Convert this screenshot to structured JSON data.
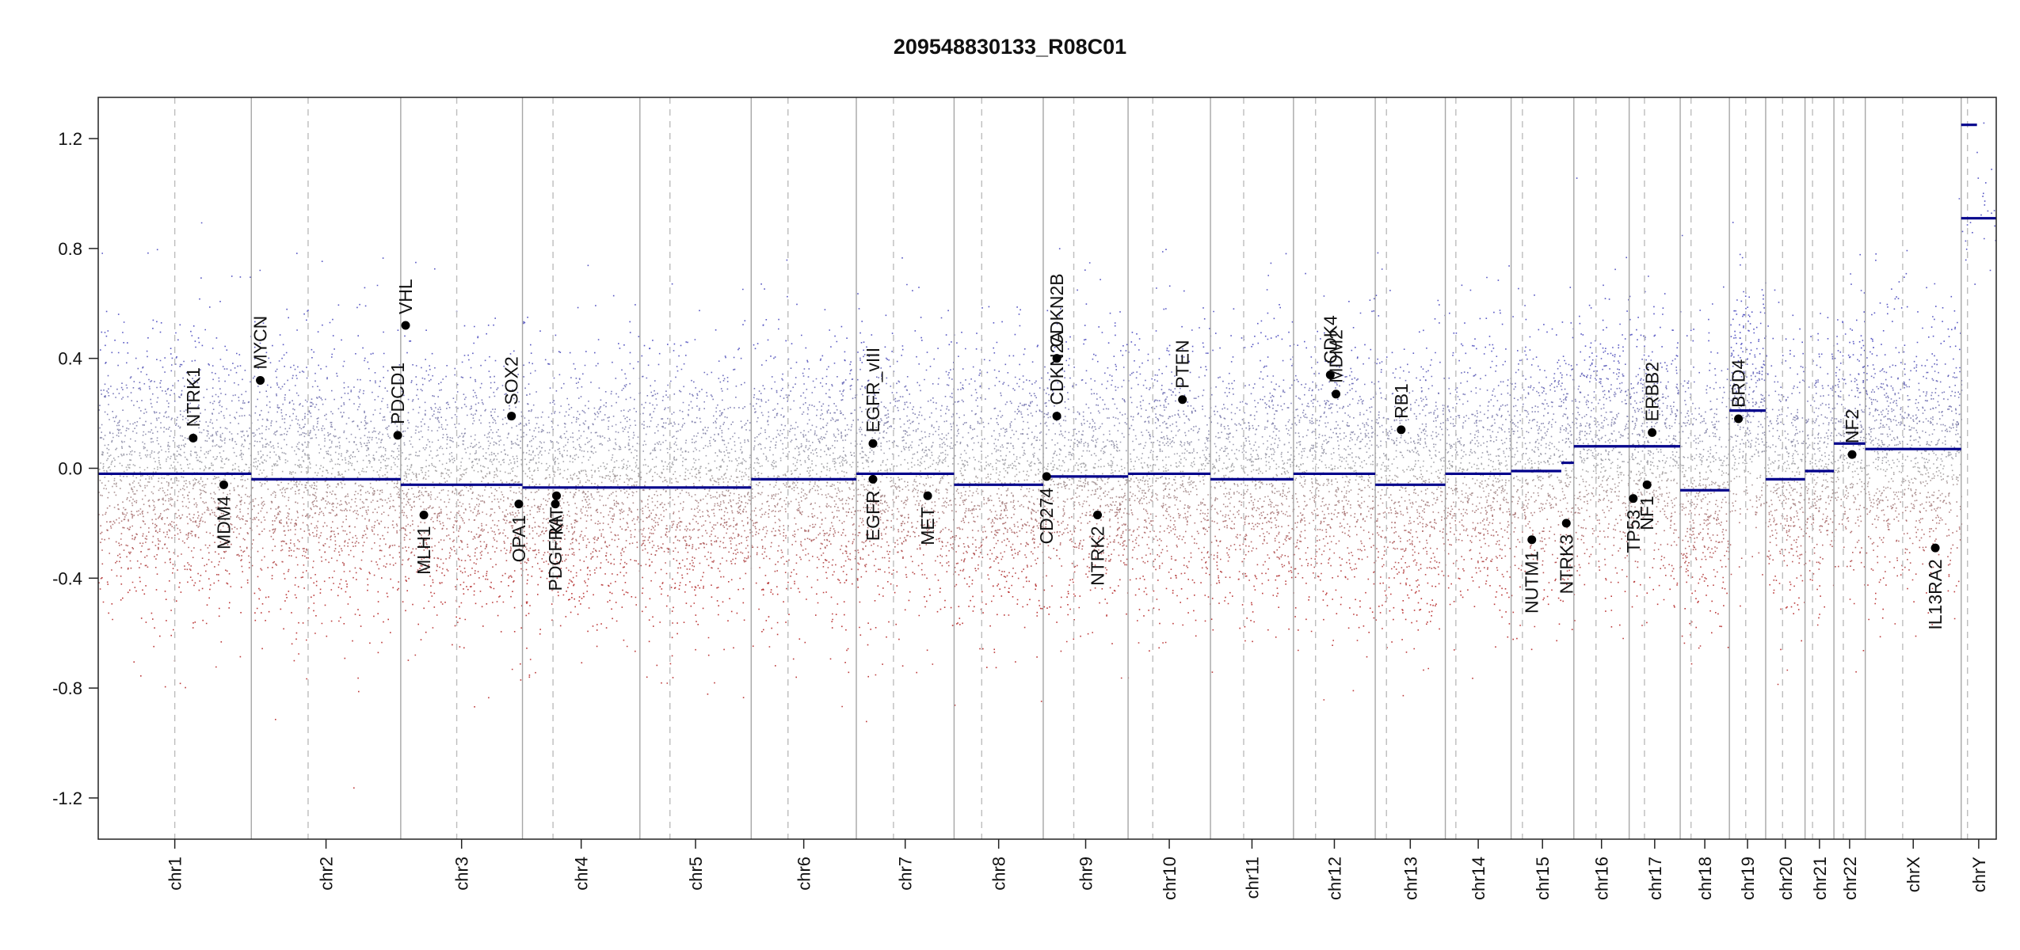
{
  "chart_data": {
    "type": "scatter",
    "title": "209548830133_R08C01",
    "xlabel": "",
    "ylabel": "",
    "ylim": [
      -1.35,
      1.35
    ],
    "yticks": [
      1.2,
      0.8,
      0.4,
      0.0,
      -0.4,
      -0.8,
      -1.2
    ],
    "ytick_labels": [
      "1.2",
      "0.8",
      "0.4",
      "0.0",
      "-0.4",
      "-0.8",
      "-1.2"
    ],
    "grid": false,
    "chromosomes": [
      {
        "name": "chr1",
        "length": 249,
        "centromere": 0.5
      },
      {
        "name": "chr2",
        "length": 243,
        "centromere": 0.38
      },
      {
        "name": "chr3",
        "length": 198,
        "centromere": 0.46
      },
      {
        "name": "chr4",
        "length": 191,
        "centromere": 0.26
      },
      {
        "name": "chr5",
        "length": 181,
        "centromere": 0.27
      },
      {
        "name": "chr6",
        "length": 171,
        "centromere": 0.35
      },
      {
        "name": "chr7",
        "length": 159,
        "centromere": 0.38
      },
      {
        "name": "chr8",
        "length": 145,
        "centromere": 0.31
      },
      {
        "name": "chr9",
        "length": 138,
        "centromere": 0.36
      },
      {
        "name": "chr10",
        "length": 134,
        "centromere": 0.3
      },
      {
        "name": "chr11",
        "length": 135,
        "centromere": 0.4
      },
      {
        "name": "chr12",
        "length": 133,
        "centromere": 0.27
      },
      {
        "name": "chr13",
        "length": 114,
        "centromere": 0.16
      },
      {
        "name": "chr14",
        "length": 107,
        "centromere": 0.16
      },
      {
        "name": "chr15",
        "length": 102,
        "centromere": 0.18
      },
      {
        "name": "chr16",
        "length": 90,
        "centromere": 0.4
      },
      {
        "name": "chr17",
        "length": 83,
        "centromere": 0.3
      },
      {
        "name": "chr18",
        "length": 80,
        "centromere": 0.22
      },
      {
        "name": "chr19",
        "length": 59,
        "centromere": 0.45
      },
      {
        "name": "chr20",
        "length": 64,
        "centromere": 0.43
      },
      {
        "name": "chr21",
        "length": 47,
        "centromere": 0.26
      },
      {
        "name": "chr22",
        "length": 51,
        "centromere": 0.3
      },
      {
        "name": "chrX",
        "length": 156,
        "centromere": 0.39
      },
      {
        "name": "chrY",
        "length": 57,
        "centromere": 0.18
      }
    ],
    "segments": [
      {
        "chr": "chr1",
        "start": 0.0,
        "end": 1.0,
        "value": -0.02
      },
      {
        "chr": "chr2",
        "start": 0.0,
        "end": 1.0,
        "value": -0.04
      },
      {
        "chr": "chr3",
        "start": 0.0,
        "end": 1.0,
        "value": -0.06
      },
      {
        "chr": "chr4",
        "start": 0.0,
        "end": 1.0,
        "value": -0.07
      },
      {
        "chr": "chr5",
        "start": 0.0,
        "end": 1.0,
        "value": -0.07
      },
      {
        "chr": "chr6",
        "start": 0.0,
        "end": 1.0,
        "value": -0.04
      },
      {
        "chr": "chr7",
        "start": 0.0,
        "end": 1.0,
        "value": -0.02
      },
      {
        "chr": "chr8",
        "start": 0.0,
        "end": 1.0,
        "value": -0.06
      },
      {
        "chr": "chr9",
        "start": 0.0,
        "end": 1.0,
        "value": -0.03
      },
      {
        "chr": "chr10",
        "start": 0.0,
        "end": 1.0,
        "value": -0.02
      },
      {
        "chr": "chr11",
        "start": 0.0,
        "end": 1.0,
        "value": -0.04
      },
      {
        "chr": "chr12",
        "start": 0.0,
        "end": 1.0,
        "value": -0.02
      },
      {
        "chr": "chr13",
        "start": 0.0,
        "end": 1.0,
        "value": -0.06
      },
      {
        "chr": "chr14",
        "start": 0.0,
        "end": 1.0,
        "value": -0.02
      },
      {
        "chr": "chr15",
        "start": 0.0,
        "end": 0.8,
        "value": -0.01
      },
      {
        "chr": "chr15",
        "start": 0.8,
        "end": 1.0,
        "value": 0.02
      },
      {
        "chr": "chr16",
        "start": 0.0,
        "end": 1.0,
        "value": 0.08
      },
      {
        "chr": "chr17",
        "start": 0.0,
        "end": 1.0,
        "value": 0.08
      },
      {
        "chr": "chr18",
        "start": 0.0,
        "end": 1.0,
        "value": -0.08
      },
      {
        "chr": "chr19",
        "start": 0.0,
        "end": 1.0,
        "value": 0.21
      },
      {
        "chr": "chr20",
        "start": 0.0,
        "end": 1.0,
        "value": -0.04
      },
      {
        "chr": "chr21",
        "start": 0.0,
        "end": 1.0,
        "value": -0.01
      },
      {
        "chr": "chr22",
        "start": 0.0,
        "end": 1.0,
        "value": 0.09
      },
      {
        "chr": "chrX",
        "start": 0.0,
        "end": 1.0,
        "value": 0.07
      },
      {
        "chr": "chrY",
        "start": 0.0,
        "end": 0.45,
        "value": 1.25
      },
      {
        "chr": "chrY",
        "start": 0.0,
        "end": 1.0,
        "value": 0.91
      }
    ],
    "genes": [
      {
        "name": "NTRK1",
        "chr": "chr1",
        "pos": 0.62,
        "value": 0.11,
        "label_side": "above"
      },
      {
        "name": "MDM4",
        "chr": "chr1",
        "pos": 0.82,
        "value": -0.06,
        "label_side": "below"
      },
      {
        "name": "MYCN",
        "chr": "chr2",
        "pos": 0.06,
        "value": 0.32,
        "label_side": "above"
      },
      {
        "name": "PDCD1",
        "chr": "chr2",
        "pos": 0.98,
        "value": 0.12,
        "label_side": "above"
      },
      {
        "name": "VHL",
        "chr": "chr3",
        "pos": 0.04,
        "value": 0.52,
        "label_side": "above"
      },
      {
        "name": "MLH1",
        "chr": "chr3",
        "pos": 0.19,
        "value": -0.17,
        "label_side": "below"
      },
      {
        "name": "SOX2",
        "chr": "chr3",
        "pos": 0.91,
        "value": 0.19,
        "label_side": "above"
      },
      {
        "name": "OPA1",
        "chr": "chr3",
        "pos": 0.97,
        "value": -0.13,
        "label_side": "below"
      },
      {
        "name": "PDGFRA",
        "chr": "chr4",
        "pos": 0.28,
        "value": -0.13,
        "label_side": "below"
      },
      {
        "name": "KIT",
        "chr": "chr4",
        "pos": 0.29,
        "value": -0.1,
        "label_side": "below"
      },
      {
        "name": "EGFR_vIII",
        "chr": "chr7",
        "pos": 0.17,
        "value": 0.09,
        "label_side": "above"
      },
      {
        "name": "EGFR",
        "chr": "chr7",
        "pos": 0.17,
        "value": -0.04,
        "label_side": "below"
      },
      {
        "name": "MET",
        "chr": "chr7",
        "pos": 0.73,
        "value": -0.1,
        "label_side": "below"
      },
      {
        "name": "CD274",
        "chr": "chr9",
        "pos": 0.04,
        "value": -0.03,
        "label_side": "below"
      },
      {
        "name": "CDKN2A",
        "chr": "chr9",
        "pos": 0.16,
        "value": 0.19,
        "label_side": "above"
      },
      {
        "name": "CDKN2B",
        "chr": "chr9",
        "pos": 0.16,
        "value": 0.4,
        "label_side": "above"
      },
      {
        "name": "NTRK2",
        "chr": "chr9",
        "pos": 0.64,
        "value": -0.17,
        "label_side": "below"
      },
      {
        "name": "PTEN",
        "chr": "chr10",
        "pos": 0.66,
        "value": 0.25,
        "label_side": "above"
      },
      {
        "name": "CDK4",
        "chr": "chr12",
        "pos": 0.45,
        "value": 0.34,
        "label_side": "above"
      },
      {
        "name": "MDM2",
        "chr": "chr12",
        "pos": 0.52,
        "value": 0.27,
        "label_side": "above"
      },
      {
        "name": "RB1",
        "chr": "chr13",
        "pos": 0.37,
        "value": 0.14,
        "label_side": "above"
      },
      {
        "name": "NUTM1",
        "chr": "chr15",
        "pos": 0.33,
        "value": -0.26,
        "label_side": "below"
      },
      {
        "name": "NTRK3",
        "chr": "chr15",
        "pos": 0.88,
        "value": -0.2,
        "label_side": "below"
      },
      {
        "name": "TP53",
        "chr": "chr17",
        "pos": 0.08,
        "value": -0.11,
        "label_side": "below"
      },
      {
        "name": "NF1",
        "chr": "chr17",
        "pos": 0.35,
        "value": -0.06,
        "label_side": "below"
      },
      {
        "name": "ERBB2",
        "chr": "chr17",
        "pos": 0.45,
        "value": 0.13,
        "label_side": "above"
      },
      {
        "name": "BRD4",
        "chr": "chr19",
        "pos": 0.25,
        "value": 0.18,
        "label_side": "above"
      },
      {
        "name": "NF2",
        "chr": "chr22",
        "pos": 0.58,
        "value": 0.05,
        "label_side": "above"
      },
      {
        "name": "IL13RA2",
        "chr": "chrX",
        "pos": 0.73,
        "value": -0.29,
        "label_side": "below"
      }
    ],
    "colors": {
      "gain": "#3a3ab8",
      "loss": "#b01818",
      "neutral": "#9a9a9a",
      "segment": "#00008b",
      "gene_marker": "#000000",
      "boundary": "#a6a6a6",
      "centromere": "#bdbdbd"
    }
  }
}
